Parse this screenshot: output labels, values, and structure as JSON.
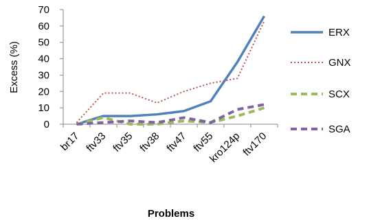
{
  "chart_data": {
    "type": "line",
    "title": "",
    "xlabel": "Problems",
    "ylabel": "Excess (%)",
    "ylim": [
      0,
      70
    ],
    "yticks": [
      0,
      10,
      20,
      30,
      40,
      50,
      60,
      70
    ],
    "categories": [
      "br17",
      "ftv33",
      "ftv35",
      "ftv38",
      "ftv47",
      "ftv55",
      "kro124p",
      "ftv170"
    ],
    "grid": false,
    "legend_position": "right",
    "series": [
      {
        "name": "ERX",
        "color": "#4f81bd",
        "style": "solid",
        "values": [
          0,
          5,
          5,
          6,
          8,
          14,
          38,
          66
        ]
      },
      {
        "name": "GNX",
        "color": "#c0504d",
        "style": "dotted",
        "values": [
          1,
          19,
          19,
          13,
          20,
          25,
          28,
          63
        ]
      },
      {
        "name": "SCX",
        "color": "#9bbb59",
        "style": "dashed",
        "values": [
          0,
          4,
          0,
          0,
          2,
          1,
          5,
          10
        ]
      },
      {
        "name": "SGA",
        "color": "#8064a2",
        "style": "dashed",
        "values": [
          0,
          1,
          2,
          1,
          4,
          1,
          9,
          12
        ]
      }
    ]
  }
}
